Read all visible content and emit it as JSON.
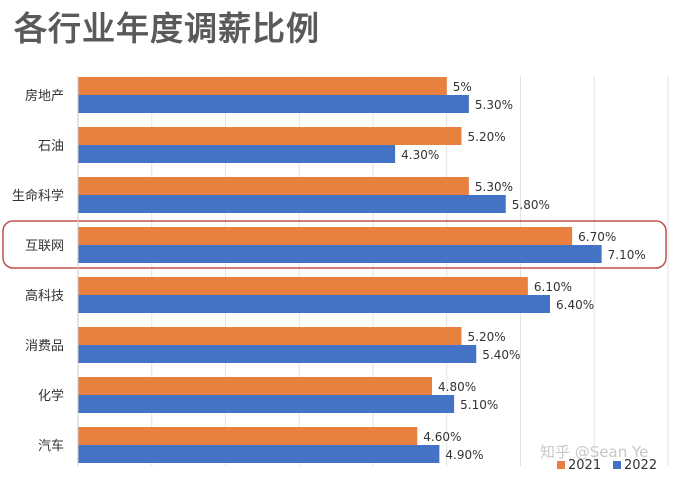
{
  "title": "各行业年度调薪比例",
  "watermark": "知乎 @Sean Ye",
  "chart_data": {
    "type": "bar",
    "orientation": "horizontal",
    "categories": [
      "房地产",
      "石油",
      "生命科学",
      "互联网",
      "高科技",
      "消费品",
      "化学",
      "汽车"
    ],
    "series": [
      {
        "name": "2021",
        "color": "#E8803F",
        "values": [
          5.0,
          5.2,
          5.3,
          6.7,
          6.1,
          5.2,
          4.8,
          4.6
        ],
        "labels": [
          "5%",
          "5.20%",
          "5.30%",
          "6.70%",
          "6.10%",
          "5.20%",
          "4.80%",
          "4.60%"
        ]
      },
      {
        "name": "2022",
        "color": "#4472C4",
        "values": [
          5.3,
          4.3,
          5.8,
          7.1,
          6.4,
          5.4,
          5.1,
          4.9
        ],
        "labels": [
          "5.30%",
          "4.30%",
          "5.80%",
          "7.10%",
          "6.40%",
          "5.40%",
          "5.10%",
          "4.90%"
        ]
      }
    ],
    "xlim": [
      0,
      8
    ],
    "grid": true,
    "highlight_category": "互联网",
    "highlight_color": "#C0504D",
    "legend": "bottom-right"
  }
}
